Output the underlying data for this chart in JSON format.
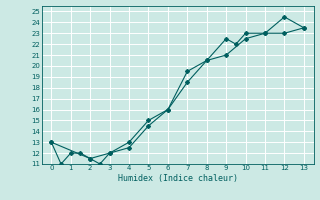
{
  "xlabel": "Humidex (Indice chaleur)",
  "bg_color": "#cce9e4",
  "grid_color": "#ffffff",
  "line_color": "#005f5f",
  "xlim": [
    -0.5,
    13.5
  ],
  "ylim": [
    11,
    25.5
  ],
  "xticks": [
    0,
    1,
    2,
    3,
    4,
    5,
    6,
    7,
    8,
    9,
    10,
    11,
    12,
    13
  ],
  "yticks": [
    11,
    12,
    13,
    14,
    15,
    16,
    17,
    18,
    19,
    20,
    21,
    22,
    23,
    24,
    25
  ],
  "line1_x": [
    0,
    0.5,
    1,
    1.5,
    2,
    2.5,
    3,
    4,
    5,
    6,
    7,
    8,
    9,
    9.5,
    10,
    11,
    12,
    13
  ],
  "line1_y": [
    13,
    11,
    12,
    12,
    11.5,
    11,
    12,
    12.5,
    14.5,
    16,
    19.5,
    20.5,
    22.5,
    22,
    23,
    23,
    24.5,
    23.5
  ],
  "line2_x": [
    0,
    2,
    3,
    4,
    5,
    6,
    7,
    8,
    9,
    10,
    11,
    12,
    13
  ],
  "line2_y": [
    13,
    11.5,
    12,
    13,
    15,
    16,
    18.5,
    20.5,
    21,
    22.5,
    23,
    23,
    23.5
  ],
  "markersize": 2.0
}
